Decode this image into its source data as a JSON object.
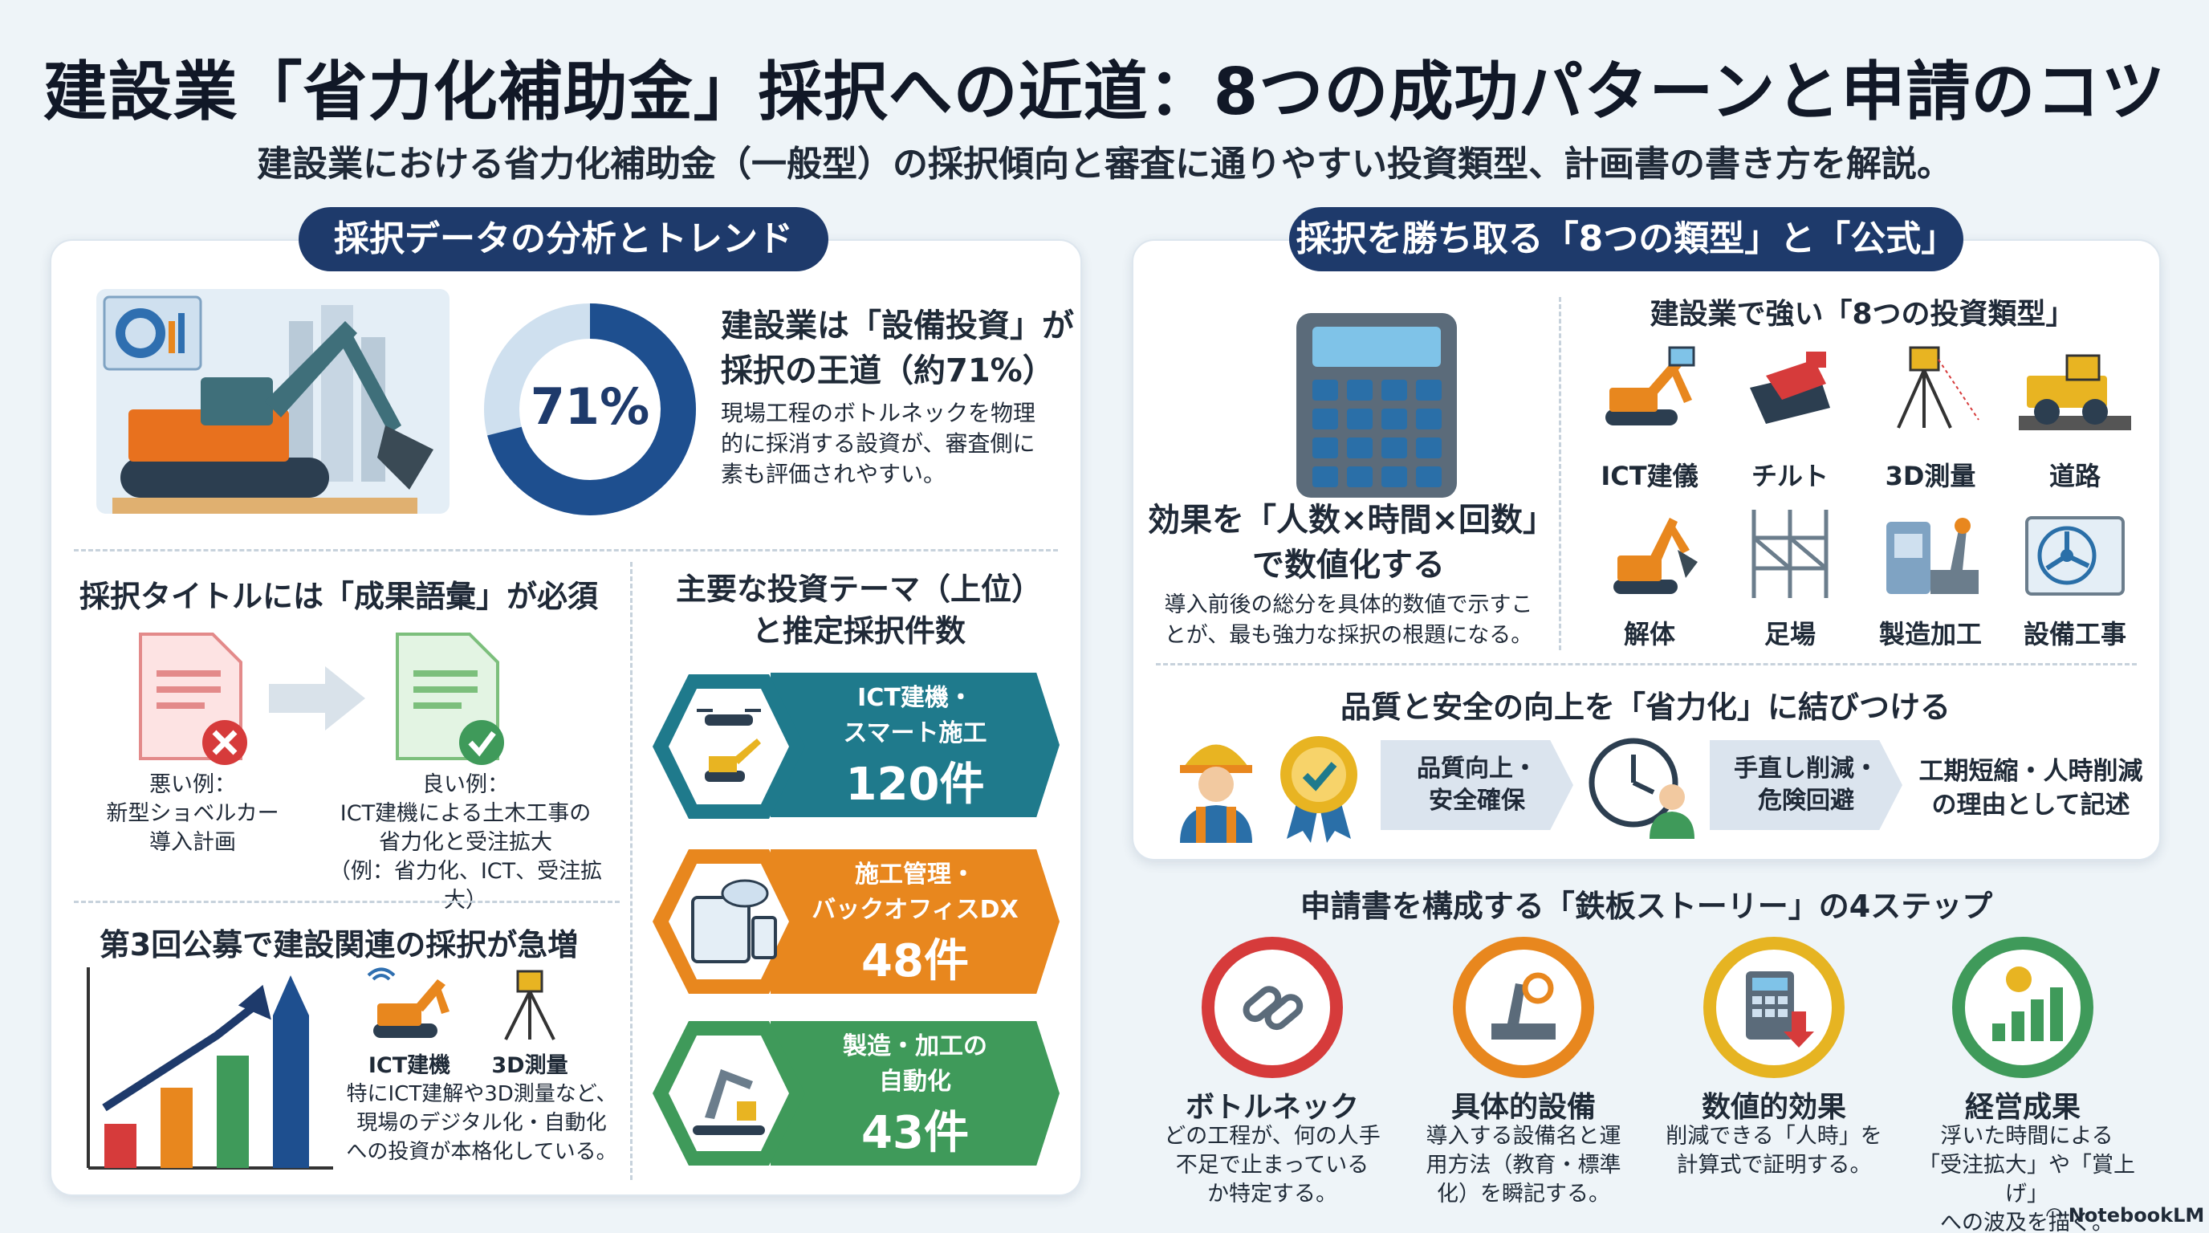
{
  "header": {
    "title": "建設業「省力化補助金」採択への近道：8つの成功パターンと申請のコツ",
    "subtitle": "建設業における省力化補助金（一般型）の採択傾向と審査に通りやすい投資類型、計画書の書き方を解説。"
  },
  "left": {
    "pill": "採択データの分析とトレンド",
    "donut": {
      "value": 71,
      "label": "71%",
      "color": "#1e4f8f",
      "rest_color": "#cfe0ef"
    },
    "headline": "建設業は「設備投資」が採択の王道（約71%）",
    "headline_l1": "建設業は「設備投資」が",
    "headline_l2": "採択の王道（約71%）",
    "desc_l1": "現場工程のボトルネックを物理",
    "desc_l2": "的に採消する設資が、審査側に",
    "desc_l3": "素も評価されやすい。",
    "title_section": {
      "heading": "採択タイトルには「成果語彙」が必須",
      "bad_l1": "悪い例：",
      "bad_l2": "新型ショベルカー",
      "bad_l3": "導入計画",
      "good_l1": "良い例：",
      "good_l2": "ICT建機による土木工事の",
      "good_l3": "省力化と受注拡大",
      "good_l4": "（例：省力化、ICT、受注拡大）"
    },
    "trend_section": {
      "heading": "第3回公募で建設関連の採択が急増",
      "icon1_label": "ICT建機",
      "icon2_label": "3D測量",
      "desc_l1": "特にICT建解や3D測量など、",
      "desc_l2": "現場のデジタル化・自動化",
      "desc_l3": "への投資が本格化している。"
    },
    "themes": {
      "heading_l1": "主要な投資テーマ（上位）",
      "heading_l2": "と推定採択件数",
      "items": [
        {
          "name_l1": "ICT建機・",
          "name_l2": "スマート施工",
          "count": "120件",
          "color": "#1f7a8c"
        },
        {
          "name_l1": "施工管理・",
          "name_l2": "バックオフィスDX",
          "count": "48件",
          "color": "#e8871e"
        },
        {
          "name_l1": "製造・加工の",
          "name_l2": "自動化",
          "count": "43件",
          "color": "#3f9a5a"
        }
      ]
    }
  },
  "right": {
    "pill": "採択を勝ち取る「8つの類型」と「公式」",
    "formula": {
      "title_l1": "効果を「人数×時間×回数」",
      "title_l2": "で数値化する",
      "desc_l1": "導入前後の総分を具体的数値で示すこ",
      "desc_l2": "とが、最も強力な採択の根題になる。"
    },
    "types": {
      "heading": "建設業で強い「8つの投資類型」",
      "items": [
        "ICT建儀",
        "チルト",
        "3D測量",
        "道路",
        "解体",
        "足場",
        "製造加工",
        "設備工事"
      ]
    },
    "quality": {
      "heading": "品質と安全の向上を「省力化」に結びつける",
      "box1_l1": "品質向上・",
      "box1_l2": "安全確保",
      "box2_l1": "手直し削減・",
      "box2_l2": "危険回避",
      "result_l1": "工期短縮・人時削減",
      "result_l2": "の理由として記述"
    },
    "steps": {
      "heading": "申請書を構成する「鉄板ストーリー」の4ステップ",
      "items": [
        {
          "title": "ボトルネック",
          "d1": "どの工程が、何の人手",
          "d2": "不足で止まっている",
          "d3": "か特定する。",
          "color": "#d63b3b"
        },
        {
          "title": "具体的設備",
          "d1": "導入する設備名と運",
          "d2": "用方法（教育・標準",
          "d3": "化）を瞬記する。",
          "color": "#e8871e"
        },
        {
          "title": "数値的効果",
          "d1": "削減できる「人時」を",
          "d2": "計算式で証明する。",
          "d3": "",
          "color": "#e6b422"
        },
        {
          "title": "経営成果",
          "d1": "浮いた時間による",
          "d2": "「受注拡大」や「賞上げ」",
          "d3": "への波及を描く。",
          "color": "#3f9a5a"
        }
      ]
    }
  },
  "footer": {
    "brand": "NotebookLM"
  }
}
